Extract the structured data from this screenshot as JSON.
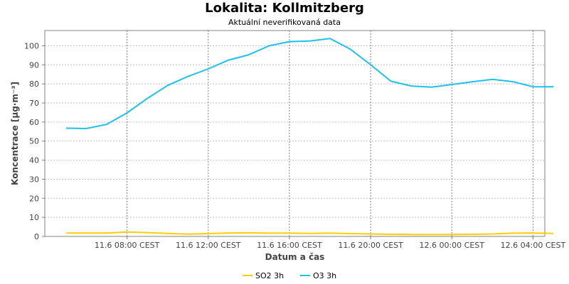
{
  "chart_data": {
    "type": "line",
    "title": "Lokalita: Kollmitzberg",
    "subtitle": "Aktuální neverifikovaná data",
    "xlabel": "Datum a čas",
    "ylabel": "Koncentrace [µg·m⁻³]",
    "ylim": [
      0,
      108
    ],
    "yticks": [
      0,
      10,
      20,
      30,
      40,
      50,
      60,
      70,
      80,
      90,
      100
    ],
    "x": [
      "11.6 05:00",
      "11.6 06:00",
      "11.6 07:00",
      "11.6 08:00",
      "11.6 09:00",
      "11.6 10:00",
      "11.6 11:00",
      "11.6 12:00",
      "11.6 13:00",
      "11.6 14:00",
      "11.6 15:00",
      "11.6 16:00",
      "11.6 17:00",
      "11.6 18:00",
      "11.6 19:00",
      "11.6 20:00",
      "11.6 21:00",
      "11.6 22:00",
      "11.6 23:00",
      "12.6 00:00",
      "12.6 01:00",
      "12.6 02:00",
      "12.6 03:00",
      "12.6 04:00",
      "12.6 05:00"
    ],
    "xtick_labels": [
      "11.6 08:00 CEST",
      "11.6 12:00 CEST",
      "11.6 16:00 CEST",
      "11.6 20:00 CEST",
      "12.6 00:00 CEST",
      "12.6 04:00 CEST"
    ],
    "xtick_index": [
      3,
      7,
      11,
      15,
      19,
      23
    ],
    "series": [
      {
        "name": "SO2 3h",
        "color": "#ffcc00",
        "values": [
          1.8,
          1.8,
          1.8,
          2.3,
          2.0,
          1.6,
          1.2,
          1.5,
          1.8,
          1.9,
          1.7,
          1.7,
          1.6,
          1.7,
          1.5,
          1.3,
          1.1,
          1.0,
          1.0,
          1.0,
          1.1,
          1.3,
          1.7,
          1.8,
          1.6
        ]
      },
      {
        "name": "O3 3h",
        "color": "#1ec0ee",
        "values": [
          56.8,
          56.6,
          58.8,
          64.8,
          72.4,
          79.2,
          83.9,
          87.9,
          92.5,
          95.3,
          100.0,
          102.2,
          102.5,
          103.8,
          98.2,
          90.1,
          81.4,
          78.9,
          78.3,
          79.7,
          81.1,
          82.4,
          81.2,
          78.5,
          78.5
        ]
      }
    ],
    "grid": true,
    "legend": "bottom-center"
  }
}
